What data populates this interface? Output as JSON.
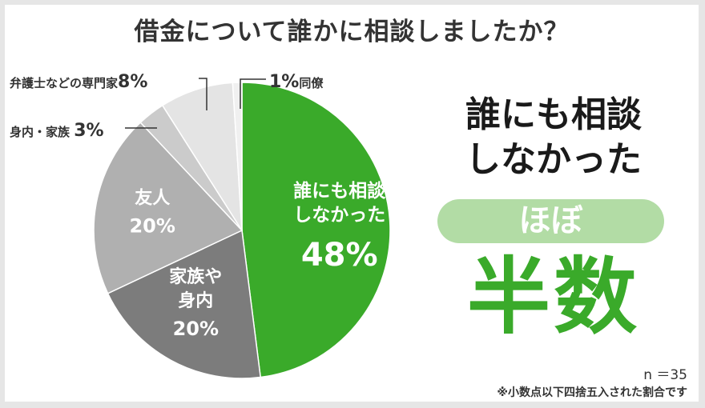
{
  "chart_data": {
    "type": "pie",
    "title": "借金について誰かに相談しましたか？",
    "slices": [
      {
        "label": "誰にも相談しなかった",
        "lines": [
          "誰にも相談",
          "しなかった"
        ],
        "percent_label": "48%",
        "value": 48,
        "color": "#3aaa2a",
        "text_color": "#ffffff"
      },
      {
        "label": "家族や身内",
        "lines": [
          "家族や",
          "身内"
        ],
        "percent_label": "20%",
        "value": 20,
        "color": "#7c7c7c",
        "text_color": "#ffffff"
      },
      {
        "label": "友人",
        "lines": [
          "友人"
        ],
        "percent_label": "20%",
        "value": 20,
        "color": "#b0b0b0",
        "text_color": "#ffffff"
      },
      {
        "label": "身内・家族",
        "lines": [],
        "percent_label": "3%",
        "value": 3,
        "color": "#cbcbcb",
        "text_color": "#333333"
      },
      {
        "label": "弁護士などの専門家",
        "lines": [],
        "percent_label": "8%",
        "value": 8,
        "color": "#e4e4e4",
        "text_color": "#333333"
      },
      {
        "label": "同僚",
        "lines": [],
        "percent_label": "1%",
        "value": 1,
        "color": "#f0f0f0",
        "text_color": "#333333"
      }
    ]
  },
  "external_labels": {
    "bengoshi": {
      "name": "弁護士などの専門家",
      "pct": "8%"
    },
    "miuchi": {
      "name": "身内・家族",
      "pct": "3%"
    },
    "douryou": {
      "pct": "1%",
      "name": "同僚"
    }
  },
  "headline": {
    "line1": "誰にも相談",
    "line2": "しなかった",
    "pill": "ほぼ",
    "big": "半数"
  },
  "footer": {
    "n": "n ＝35",
    "note": "※小数点以下四捨五入された割合です"
  },
  "colors": {
    "accent": "#3aaa2a",
    "pill_bg": "#b2dca5"
  }
}
